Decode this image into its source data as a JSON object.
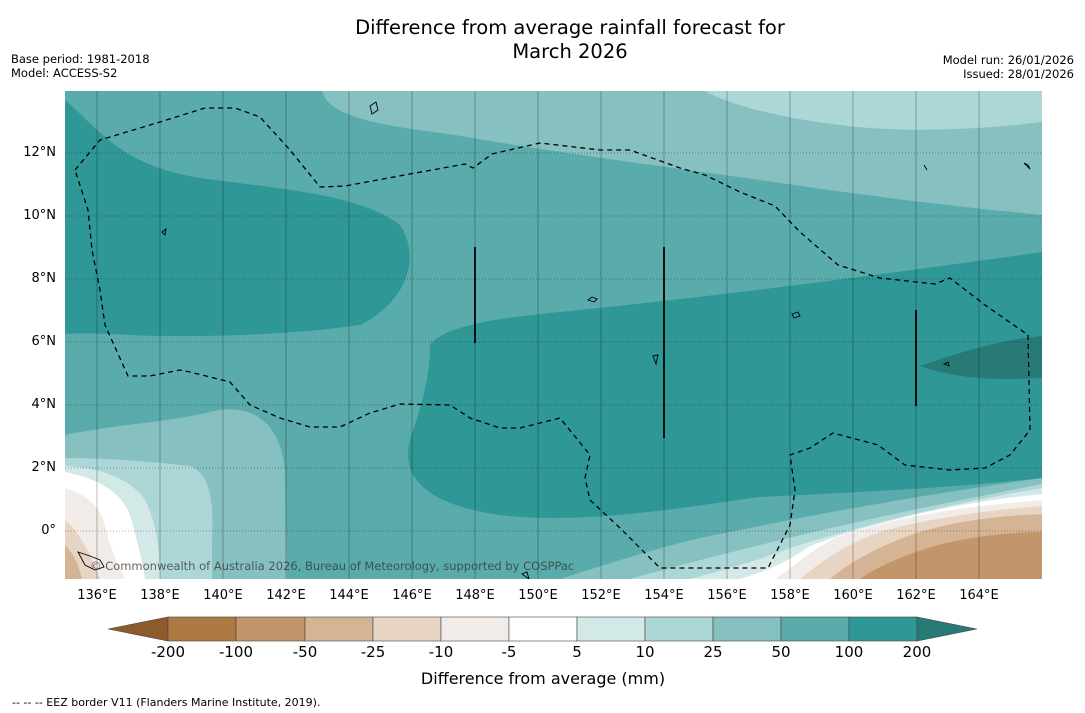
{
  "title_line1": "Difference from average rainfall forecast for",
  "title_line2": "March 2026",
  "meta_left": {
    "base_period": "Base period: 1981-2018",
    "model": "Model: ACCESS-S2"
  },
  "meta_right": {
    "model_run": "Model run: 26/01/2026",
    "issued": "Issued: 28/01/2026"
  },
  "lat_labels": [
    "12°N",
    "10°N",
    "8°N",
    "6°N",
    "4°N",
    "2°N",
    "0°"
  ],
  "lon_labels": [
    "136°E",
    "138°E",
    "140°E",
    "142°E",
    "144°E",
    "146°E",
    "148°E",
    "150°E",
    "152°E",
    "154°E",
    "156°E",
    "158°E",
    "160°E",
    "162°E",
    "164°E"
  ],
  "copyright": "© Commonwealth of Australia 2026, Bureau of Meteorology, supported by COSPPac",
  "colorbar": {
    "labels": [
      "-200",
      "-100",
      "-50",
      "-25",
      "-10",
      "-5",
      "5",
      "10",
      "25",
      "50",
      "100",
      "200"
    ],
    "colors": [
      "#8c5a2b",
      "#ad7a43",
      "#c2956b",
      "#d5b496",
      "#e8d4c2",
      "#f2ece8",
      "#ffffff",
      "#d3e9e7",
      "#acd7d6",
      "#86c0c0",
      "#5aabab",
      "#2f9796",
      "#277a76"
    ],
    "title": "Difference from average (mm)"
  },
  "footnote": "--  --  -- EEZ border V11 (Flanders Marine Institute, 2019).",
  "map_colors": {
    "ocean_land": "#d3e9e7"
  }
}
